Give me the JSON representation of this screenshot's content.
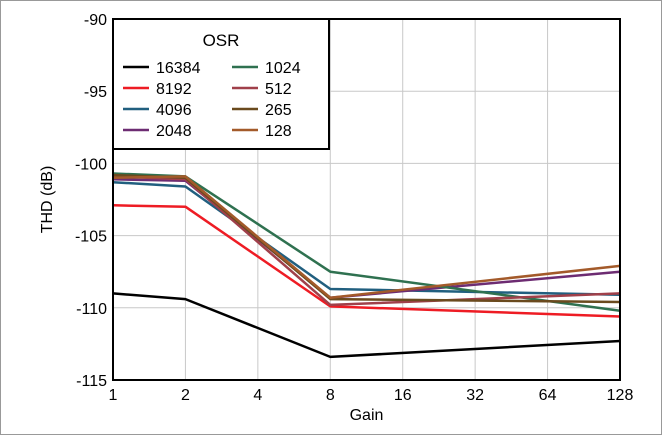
{
  "chart_data": {
    "type": "line",
    "x": [
      1,
      2,
      4,
      8,
      16,
      32,
      64,
      128
    ],
    "x_scale": "log2",
    "xlim": [
      1,
      128
    ],
    "ylim": [
      -115,
      -90
    ],
    "yticks": [
      "-90",
      "-95",
      "-100",
      "-105",
      "-110",
      "-115"
    ],
    "xticks": [
      "1",
      "2",
      "4",
      "8",
      "16",
      "32",
      "64",
      "128"
    ],
    "xlabel": "Gain",
    "ylabel": "THD (dB)",
    "grid": true,
    "legend": {
      "title": "OSR",
      "placement": "top-left",
      "columns": 2
    },
    "series": [
      {
        "name": "16384",
        "color": "#000000",
        "x": [
          1,
          2,
          8,
          128
        ],
        "values": [
          -109.0,
          -109.4,
          -113.4,
          -112.3
        ]
      },
      {
        "name": "8192",
        "color": "#ee1c24",
        "x": [
          1,
          2,
          8,
          128
        ],
        "values": [
          -102.9,
          -103.0,
          -109.9,
          -110.6
        ]
      },
      {
        "name": "4096",
        "color": "#215f7f",
        "x": [
          1,
          2,
          8,
          128
        ],
        "values": [
          -101.3,
          -101.6,
          -108.7,
          -109.1
        ]
      },
      {
        "name": "2048",
        "color": "#6d2c72",
        "x": [
          1,
          2,
          8,
          128
        ],
        "values": [
          -101.1,
          -101.2,
          -109.3,
          -107.5
        ]
      },
      {
        "name": "1024",
        "color": "#2f7150",
        "x": [
          1,
          2,
          8,
          128
        ],
        "values": [
          -100.7,
          -100.9,
          -107.5,
          -110.2
        ]
      },
      {
        "name": "512",
        "color": "#a0404a",
        "x": [
          1,
          2,
          8,
          128
        ],
        "values": [
          -100.9,
          -101.1,
          -109.8,
          -109.0
        ]
      },
      {
        "name": "265",
        "color": "#6a4a1e",
        "x": [
          1,
          2,
          8,
          128
        ],
        "values": [
          -100.8,
          -101.0,
          -109.4,
          -109.6
        ]
      },
      {
        "name": "128",
        "color": "#a35a2a",
        "x": [
          1,
          2,
          8,
          128
        ],
        "values": [
          -101.0,
          -100.9,
          -109.3,
          -107.1
        ]
      }
    ]
  }
}
